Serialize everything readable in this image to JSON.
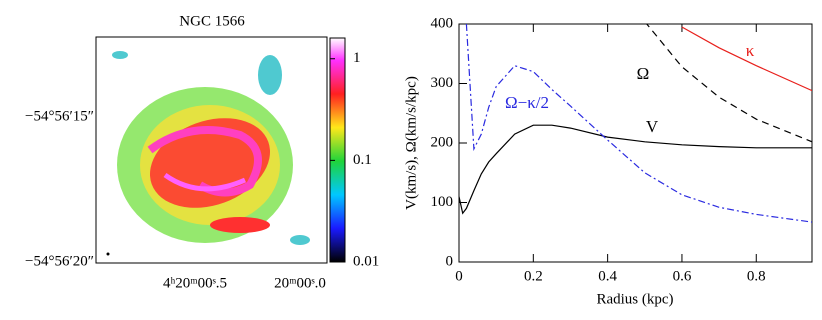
{
  "chart_data": [
    {
      "type": "image",
      "title": "NGC 1566",
      "x_tick_labels": [
        "4ʰ20ᵐ00ˢ.5",
        "20ᵐ00ˢ.0"
      ],
      "y_tick_labels": [
        "−54°56′15″",
        "−54°56′20″"
      ],
      "colorbar": {
        "scale": "log",
        "lim": [
          0.01,
          1.6
        ],
        "ticks": [
          0.01,
          0.1,
          1
        ]
      }
    },
    {
      "type": "line",
      "xlabel": "Radius (kpc)",
      "ylabel": "V(km/s), Ω(km/s/kpc)",
      "x": [
        0,
        0.01,
        0.02,
        0.04,
        0.06,
        0.08,
        0.1,
        0.15,
        0.2,
        0.25,
        0.3,
        0.4,
        0.5,
        0.6,
        0.7,
        0.8,
        0.95
      ],
      "xlim": [
        0,
        0.95
      ],
      "ylim": [
        0,
        400
      ],
      "xticks": [
        0,
        0.2,
        0.4,
        0.6,
        0.8
      ],
      "yticks": [
        0,
        100,
        200,
        300,
        400
      ],
      "series": [
        {
          "name": "V",
          "color": "#000000",
          "dash": "solid",
          "values": [
            110,
            82,
            90,
            120,
            148,
            168,
            182,
            215,
            230,
            230,
            225,
            210,
            202,
            197,
            194,
            192,
            192
          ]
        },
        {
          "name": "Ω",
          "color": "#000000",
          "dash": "dashed",
          "values": [
            null,
            null,
            null,
            null,
            null,
            null,
            null,
            null,
            null,
            null,
            null,
            null,
            404,
            328,
            277,
            240,
            202
          ]
        },
        {
          "name": "κ",
          "color": "#e8201c",
          "dash": "solid",
          "values": [
            null,
            null,
            null,
            null,
            null,
            null,
            null,
            null,
            null,
            null,
            null,
            null,
            null,
            395,
            360,
            330,
            288
          ]
        },
        {
          "name": "Ω−κ/2",
          "color": "#2a2ae0",
          "dash": "dashdot",
          "values": [
            null,
            null,
            400,
            190,
            215,
            260,
            295,
            330,
            320,
            290,
            262,
            205,
            150,
            113,
            92,
            80,
            67
          ]
        }
      ]
    }
  ]
}
